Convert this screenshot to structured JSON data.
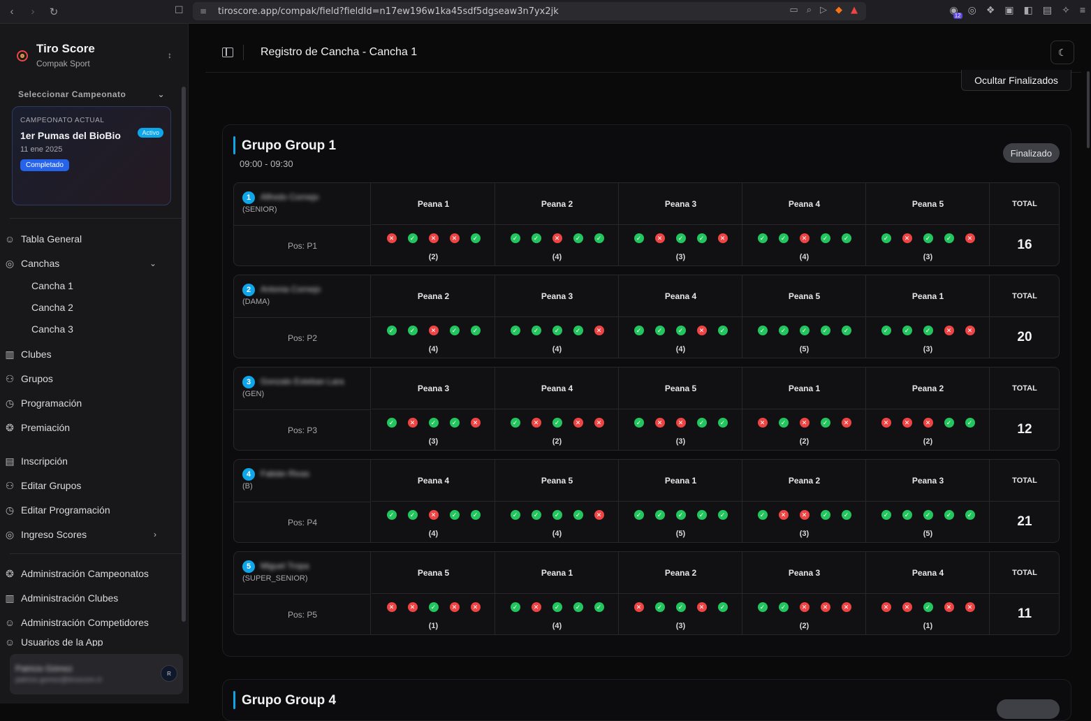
{
  "browser": {
    "url": "tiroscore.app/compak/field?fieldId=n17ew196w1ka45sdf5dgseaw3n7yx2jk",
    "extension_count": "12"
  },
  "sidebar": {
    "brand_title": "Tiro Score",
    "brand_subtitle": "Compak Sport",
    "select_label": "Seleccionar Campeonato",
    "championship": {
      "label": "CAMPEONATO ACTUAL",
      "status_badge": "Activo",
      "name": "1er Pumas del BioBio",
      "date": "11 ene 2025",
      "state_badge": "Completado"
    },
    "nav": [
      {
        "label": "Tabla General",
        "icon": "users-icon"
      },
      {
        "label": "Canchas",
        "icon": "target-icon"
      },
      {
        "label": "Clubes",
        "icon": "building-icon"
      },
      {
        "label": "Grupos",
        "icon": "group-icon"
      },
      {
        "label": "Programación",
        "icon": "clock-icon"
      },
      {
        "label": "Premiación",
        "icon": "trophy-icon"
      },
      {
        "label": "Inscripción",
        "icon": "clipboard-icon"
      },
      {
        "label": "Editar Grupos",
        "icon": "group-icon"
      },
      {
        "label": "Editar Programación",
        "icon": "clock-icon"
      },
      {
        "label": "Ingreso Scores",
        "icon": "target-icon"
      },
      {
        "label": "Administración Campeonatos",
        "icon": "trophy-icon"
      },
      {
        "label": "Administración Clubes",
        "icon": "building-icon"
      },
      {
        "label": "Administración Competidores",
        "icon": "users-icon"
      },
      {
        "label": "Usuarios de la App",
        "icon": "users-icon"
      }
    ],
    "canchas_sub": [
      "Cancha 1",
      "Cancha 2",
      "Cancha 3"
    ],
    "user": {
      "name": "Patricio Gómez",
      "email": "patricio.gomez@tiroscore.cl",
      "avatar_text": "R"
    }
  },
  "header": {
    "title": "Registro de Cancha - Cancha 1"
  },
  "toolbar": {
    "hide_finished_label": "Ocultar Finalizados"
  },
  "group": {
    "title": "Grupo Group 1",
    "time": "09:00 - 09:30",
    "status": "Finalizado",
    "total_label": "TOTAL",
    "competitors": [
      {
        "number": "1",
        "name": "Alfredo Cornejo",
        "category": "(SENIOR)",
        "position": "Pos: P1",
        "total": "16",
        "peanas": [
          {
            "label": "Peana 1",
            "shots": [
              0,
              1,
              0,
              0,
              1
            ],
            "score": "(2)"
          },
          {
            "label": "Peana 2",
            "shots": [
              1,
              1,
              0,
              1,
              1
            ],
            "score": "(4)"
          },
          {
            "label": "Peana 3",
            "shots": [
              1,
              0,
              1,
              1,
              0
            ],
            "score": "(3)"
          },
          {
            "label": "Peana 4",
            "shots": [
              1,
              1,
              0,
              1,
              1
            ],
            "score": "(4)"
          },
          {
            "label": "Peana 5",
            "shots": [
              1,
              0,
              1,
              1,
              0
            ],
            "score": "(3)"
          }
        ]
      },
      {
        "number": "2",
        "name": "Antonia Cornejo",
        "category": "(DAMA)",
        "position": "Pos: P2",
        "total": "20",
        "peanas": [
          {
            "label": "Peana 2",
            "shots": [
              1,
              1,
              0,
              1,
              1
            ],
            "score": "(4)"
          },
          {
            "label": "Peana 3",
            "shots": [
              1,
              1,
              1,
              1,
              0
            ],
            "score": "(4)"
          },
          {
            "label": "Peana 4",
            "shots": [
              1,
              1,
              1,
              0,
              1
            ],
            "score": "(4)"
          },
          {
            "label": "Peana 5",
            "shots": [
              1,
              1,
              1,
              1,
              1
            ],
            "score": "(5)"
          },
          {
            "label": "Peana 1",
            "shots": [
              1,
              1,
              1,
              0,
              0
            ],
            "score": "(3)"
          }
        ]
      },
      {
        "number": "3",
        "name": "Gonzalo Esteban Lara",
        "category": "(GEN)",
        "position": "Pos: P3",
        "total": "12",
        "peanas": [
          {
            "label": "Peana 3",
            "shots": [
              1,
              0,
              1,
              1,
              0
            ],
            "score": "(3)"
          },
          {
            "label": "Peana 4",
            "shots": [
              1,
              0,
              1,
              0,
              0
            ],
            "score": "(2)"
          },
          {
            "label": "Peana 5",
            "shots": [
              1,
              0,
              0,
              1,
              1
            ],
            "score": "(3)"
          },
          {
            "label": "Peana 1",
            "shots": [
              0,
              1,
              0,
              1,
              0
            ],
            "score": "(2)"
          },
          {
            "label": "Peana 2",
            "shots": [
              0,
              0,
              0,
              1,
              1
            ],
            "score": "(2)"
          }
        ]
      },
      {
        "number": "4",
        "name": "Fabián Rivas",
        "category": "(B)",
        "position": "Pos: P4",
        "total": "21",
        "peanas": [
          {
            "label": "Peana 4",
            "shots": [
              1,
              1,
              0,
              1,
              1
            ],
            "score": "(4)"
          },
          {
            "label": "Peana 5",
            "shots": [
              1,
              1,
              1,
              1,
              0
            ],
            "score": "(4)"
          },
          {
            "label": "Peana 1",
            "shots": [
              1,
              1,
              1,
              1,
              1
            ],
            "score": "(5)"
          },
          {
            "label": "Peana 2",
            "shots": [
              1,
              0,
              0,
              1,
              1
            ],
            "score": "(3)"
          },
          {
            "label": "Peana 3",
            "shots": [
              1,
              1,
              1,
              1,
              1
            ],
            "score": "(5)"
          }
        ]
      },
      {
        "number": "5",
        "name": "Miguel Tropa",
        "category": "(SUPER_SENIOR)",
        "position": "Pos: P5",
        "total": "11",
        "peanas": [
          {
            "label": "Peana 5",
            "shots": [
              0,
              0,
              1,
              0,
              0
            ],
            "score": "(1)"
          },
          {
            "label": "Peana 1",
            "shots": [
              1,
              0,
              1,
              1,
              1
            ],
            "score": "(4)"
          },
          {
            "label": "Peana 2",
            "shots": [
              0,
              1,
              1,
              0,
              1
            ],
            "score": "(3)"
          },
          {
            "label": "Peana 3",
            "shots": [
              1,
              1,
              0,
              0,
              0
            ],
            "score": "(2)"
          },
          {
            "label": "Peana 4",
            "shots": [
              0,
              0,
              1,
              0,
              0
            ],
            "score": "(1)"
          }
        ]
      }
    ]
  },
  "next_group": {
    "title": "Grupo Group 4"
  }
}
